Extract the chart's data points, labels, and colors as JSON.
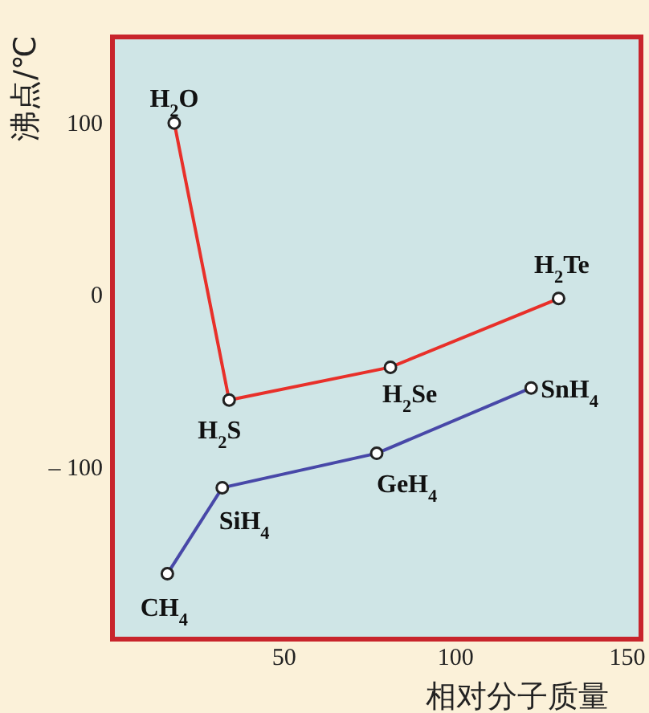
{
  "chart_data": {
    "type": "line",
    "xlabel": "相对分子质量",
    "ylabel": "沸点/℃",
    "xlim": [
      0,
      154
    ],
    "ylim": [
      -200,
      150
    ],
    "xticks": [
      50,
      100,
      150
    ],
    "yticks": [
      100,
      0,
      {
        "value": -100,
        "label": "– 100"
      }
    ],
    "marker": "circle",
    "series": [
      {
        "color": "#e8302a",
        "x": [
          18,
          34,
          81,
          130
        ],
        "values": [
          100,
          -61,
          -42,
          -2
        ]
      },
      {
        "color": "#4848a8",
        "x": [
          16,
          32,
          77,
          122
        ],
        "values": [
          -162,
          -112,
          -92,
          -54
        ]
      }
    ],
    "annotations": [
      {
        "text": "H$_{2}$O",
        "x": 18,
        "y": 100
      },
      {
        "text": "H$_{2}$S",
        "x": 34,
        "y": -61
      },
      {
        "text": "H$_{2}$Se",
        "x": 81,
        "y": -42
      },
      {
        "text": "H$_{2}$Te",
        "x": 130,
        "y": -2
      },
      {
        "text": "CH$_{4}$",
        "x": 16,
        "y": -162
      },
      {
        "text": "SiH$_{4}$",
        "x": 32,
        "y": -112
      },
      {
        "text": "GeH$_{4}$",
        "x": 77,
        "y": -92
      },
      {
        "text": "SnH$_{4}$",
        "x": 122,
        "y": -54
      }
    ]
  }
}
